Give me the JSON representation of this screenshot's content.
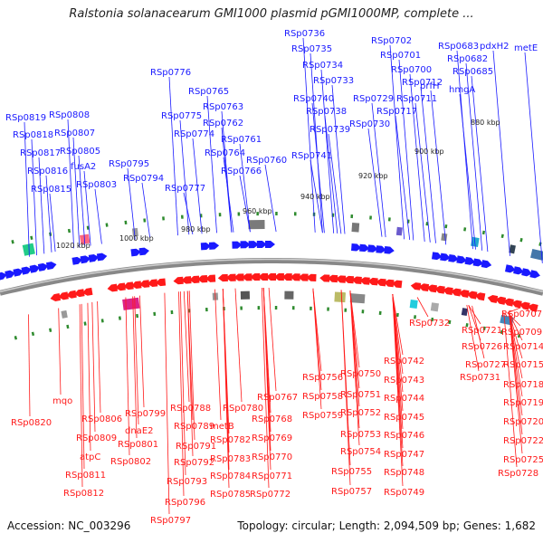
{
  "title": "Ralstonia solanacearum GMI1000 plasmid pGMI1000MP, complete ...",
  "accession": "Accession: NC_003296",
  "summary": "Topology: circular; Length: 2,094,509 bp; Genes: 1,682",
  "colors": {
    "forward": "#1a1aff",
    "reverse": "#ff1a1a",
    "backbone": "#888888",
    "tick_dot": "#2e8b2e"
  },
  "scale_labels": [
    {
      "text": "880 kbp"
    },
    {
      "text": "900 kbp"
    },
    {
      "text": "920 kbp"
    },
    {
      "text": "940 kbp"
    },
    {
      "text": "960 kbp"
    },
    {
      "text": "980 kbp"
    },
    {
      "text": "1000 kbp"
    },
    {
      "text": "1020 kbp"
    }
  ],
  "forward_genes": [
    "RSp0819",
    "RSp0818",
    "RSp0817",
    "RSp0816",
    "RSp0815",
    "RSp0808",
    "RSp0807",
    "RSp0805",
    "fusA2",
    "RSp0803",
    "RSp0795",
    "RSp0794",
    "RSp0776",
    "RSp0775",
    "RSp0774",
    "RSp0777",
    "RSp0765",
    "RSp0763",
    "RSp0762",
    "RSp0761",
    "RSp0764",
    "RSp0766",
    "RSp0760",
    "RSp0736",
    "RSp0735",
    "RSp0734",
    "RSp0733",
    "RSp0740",
    "RSp0738",
    "RSp0739",
    "RSp0741",
    "RSp0729",
    "RSp0730",
    "RSp0702",
    "RSp0701",
    "RSp0700",
    "RSp0712",
    "RSp0711",
    "RSp0717",
    "prfH",
    "RSp0683",
    "RSp0682",
    "RSp0685",
    "hmgA",
    "pdxH2",
    "metE"
  ],
  "reverse_genes": [
    "RSp0820",
    "mqo",
    "RSp0806",
    "RSp0809",
    "atpC",
    "RSp0811",
    "RSp0812",
    "RSp0799",
    "dnaE2",
    "RSp0801",
    "RSp0802",
    "RSp0788",
    "RSp0789",
    "RSp0791",
    "RSp0792",
    "RSp0793",
    "RSp0796",
    "RSp0797",
    "RSp0780",
    "metB",
    "RSp0782",
    "RSp0783",
    "RSp0784",
    "RSp0785",
    "RSp0767",
    "RSp0768",
    "RSp0769",
    "RSp0770",
    "RSp0771",
    "RSp0772",
    "RSp0756",
    "RSp0758",
    "RSp0759",
    "RSp0750",
    "RSp0751",
    "RSp0752",
    "RSp0753",
    "RSp0754",
    "RSp0755",
    "RSp0757",
    "RSp0742",
    "RSp0743",
    "RSp0744",
    "RSp0745",
    "RSp0746",
    "RSp0747",
    "RSp0748",
    "RSp0749",
    "RSp0732",
    "RSp0731",
    "RSp0707",
    "RSp0709",
    "RSp0721",
    "RSp0726",
    "RSp0714",
    "RSp0727",
    "RSp0715",
    "RSp0718",
    "RSp0719",
    "RSp0720",
    "RSp0722",
    "RSp0725",
    "RSp0728"
  ]
}
